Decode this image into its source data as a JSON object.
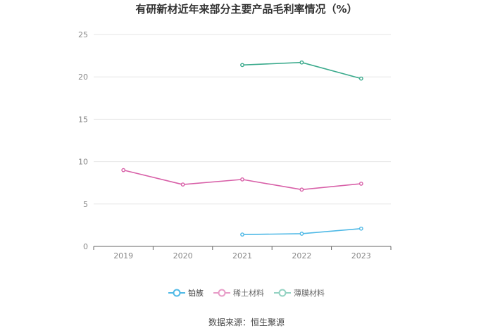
{
  "chart_data": {
    "type": "line",
    "title": "有研新材近年来部分主要产品毛利率情况（%）",
    "categories": [
      "2019",
      "2020",
      "2021",
      "2022",
      "2023"
    ],
    "ylim": [
      0,
      25
    ],
    "yticks": [
      "0",
      "5",
      "10",
      "15",
      "20",
      "25"
    ],
    "grid": true,
    "legend_position": "bottom",
    "series": [
      {
        "name": "铂族",
        "color": "#4fb9e6",
        "values": [
          null,
          null,
          1.4,
          1.5,
          2.1
        ]
      },
      {
        "name": "稀土材料",
        "color": "#d860a8",
        "values": [
          9.0,
          7.3,
          7.9,
          6.7,
          7.4
        ]
      },
      {
        "name": "薄膜材料",
        "color": "#3aaa8c",
        "values": [
          null,
          null,
          21.4,
          21.7,
          19.8
        ]
      }
    ]
  },
  "source": "数据来源：恒生聚源"
}
